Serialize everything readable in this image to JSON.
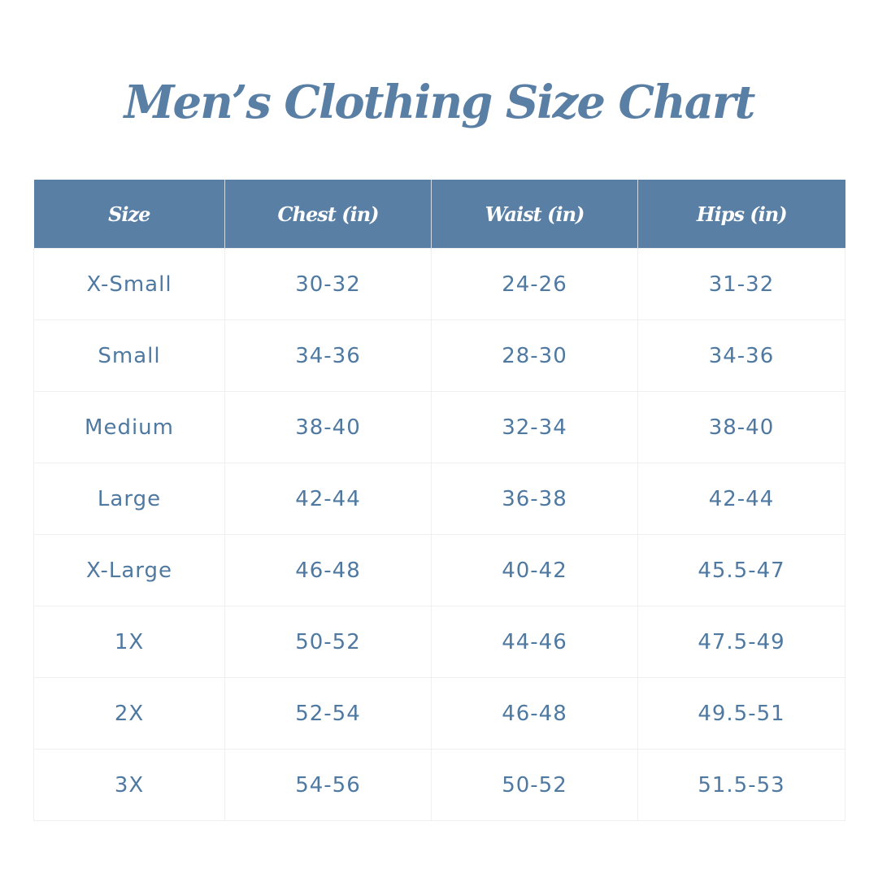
{
  "title": "Men’s Clothing Size Chart",
  "colors": {
    "accent": "#5a7fa5",
    "text": "#4f79a1",
    "header_text": "#ffffff",
    "background": "#ffffff"
  },
  "table": {
    "headers": [
      "Size",
      "Chest (in)",
      "Waist (in)",
      "Hips (in)"
    ],
    "rows": [
      [
        "X-Small",
        "30-32",
        "24-26",
        "31-32"
      ],
      [
        "Small",
        "34-36",
        "28-30",
        "34-36"
      ],
      [
        "Medium",
        "38-40",
        "32-34",
        "38-40"
      ],
      [
        "Large",
        "42-44",
        "36-38",
        "42-44"
      ],
      [
        "X-Large",
        "46-48",
        "40-42",
        "45.5-47"
      ],
      [
        "1X",
        "50-52",
        "44-46",
        "47.5-49"
      ],
      [
        "2X",
        "52-54",
        "46-48",
        "49.5-51"
      ],
      [
        "3X",
        "54-56",
        "50-52",
        "51.5-53"
      ]
    ]
  }
}
